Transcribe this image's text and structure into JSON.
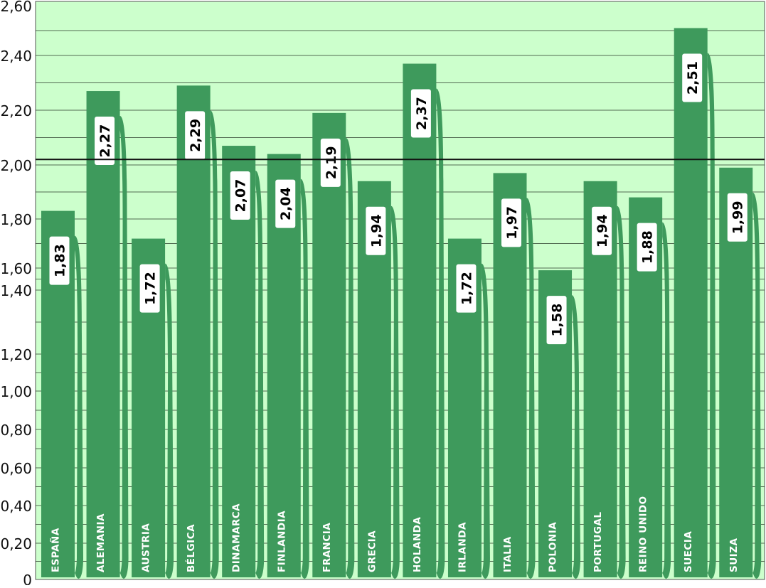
{
  "chart_data": {
    "type": "bar",
    "title": "",
    "xlabel": "",
    "ylabel": "",
    "ylim": [
      0,
      2.6
    ],
    "y_ticks": [
      "0",
      "0,20",
      "0,40",
      "0,60",
      "0,80",
      "1,00",
      "1,20",
      "1,40",
      "1,60",
      "1,80",
      "2,00",
      "2,20",
      "2,40",
      "2,60"
    ],
    "y_tick_values": [
      0,
      0.2,
      0.4,
      0.6,
      0.8,
      1.0,
      1.2,
      1.4,
      1.6,
      1.8,
      2.0,
      2.2,
      2.4,
      2.6
    ],
    "grid": true,
    "reference_line": 2.02,
    "categories": [
      "ESPAÑA",
      "ALEMANIA",
      "AUSTRIA",
      "BÉLGICA",
      "DINAMARCA",
      "FINLANDIA",
      "FRANCIA",
      "GRECIA",
      "HOLANDA",
      "IRLANDA",
      "ITALIA",
      "POLONIA",
      "PORTUGAL",
      "REINO UNIDO",
      "SUECIA",
      "SUIZA"
    ],
    "values": [
      1.83,
      2.27,
      1.72,
      2.29,
      2.07,
      2.04,
      2.19,
      1.94,
      2.37,
      1.72,
      1.97,
      1.58,
      1.94,
      1.88,
      2.51,
      1.99
    ],
    "value_labels": [
      "1,83",
      "2,27",
      "1,72",
      "2,29",
      "2,07",
      "2,04",
      "2,19",
      "1,94",
      "2,37",
      "1,72",
      "1,97",
      "1,58",
      "1,94",
      "1,88",
      "2,51",
      "1,99"
    ],
    "colors": {
      "background": "#ccffcc",
      "bar": "#3e9a5c",
      "grid": "#2a3a2a",
      "label_box": "#ffffff"
    }
  }
}
